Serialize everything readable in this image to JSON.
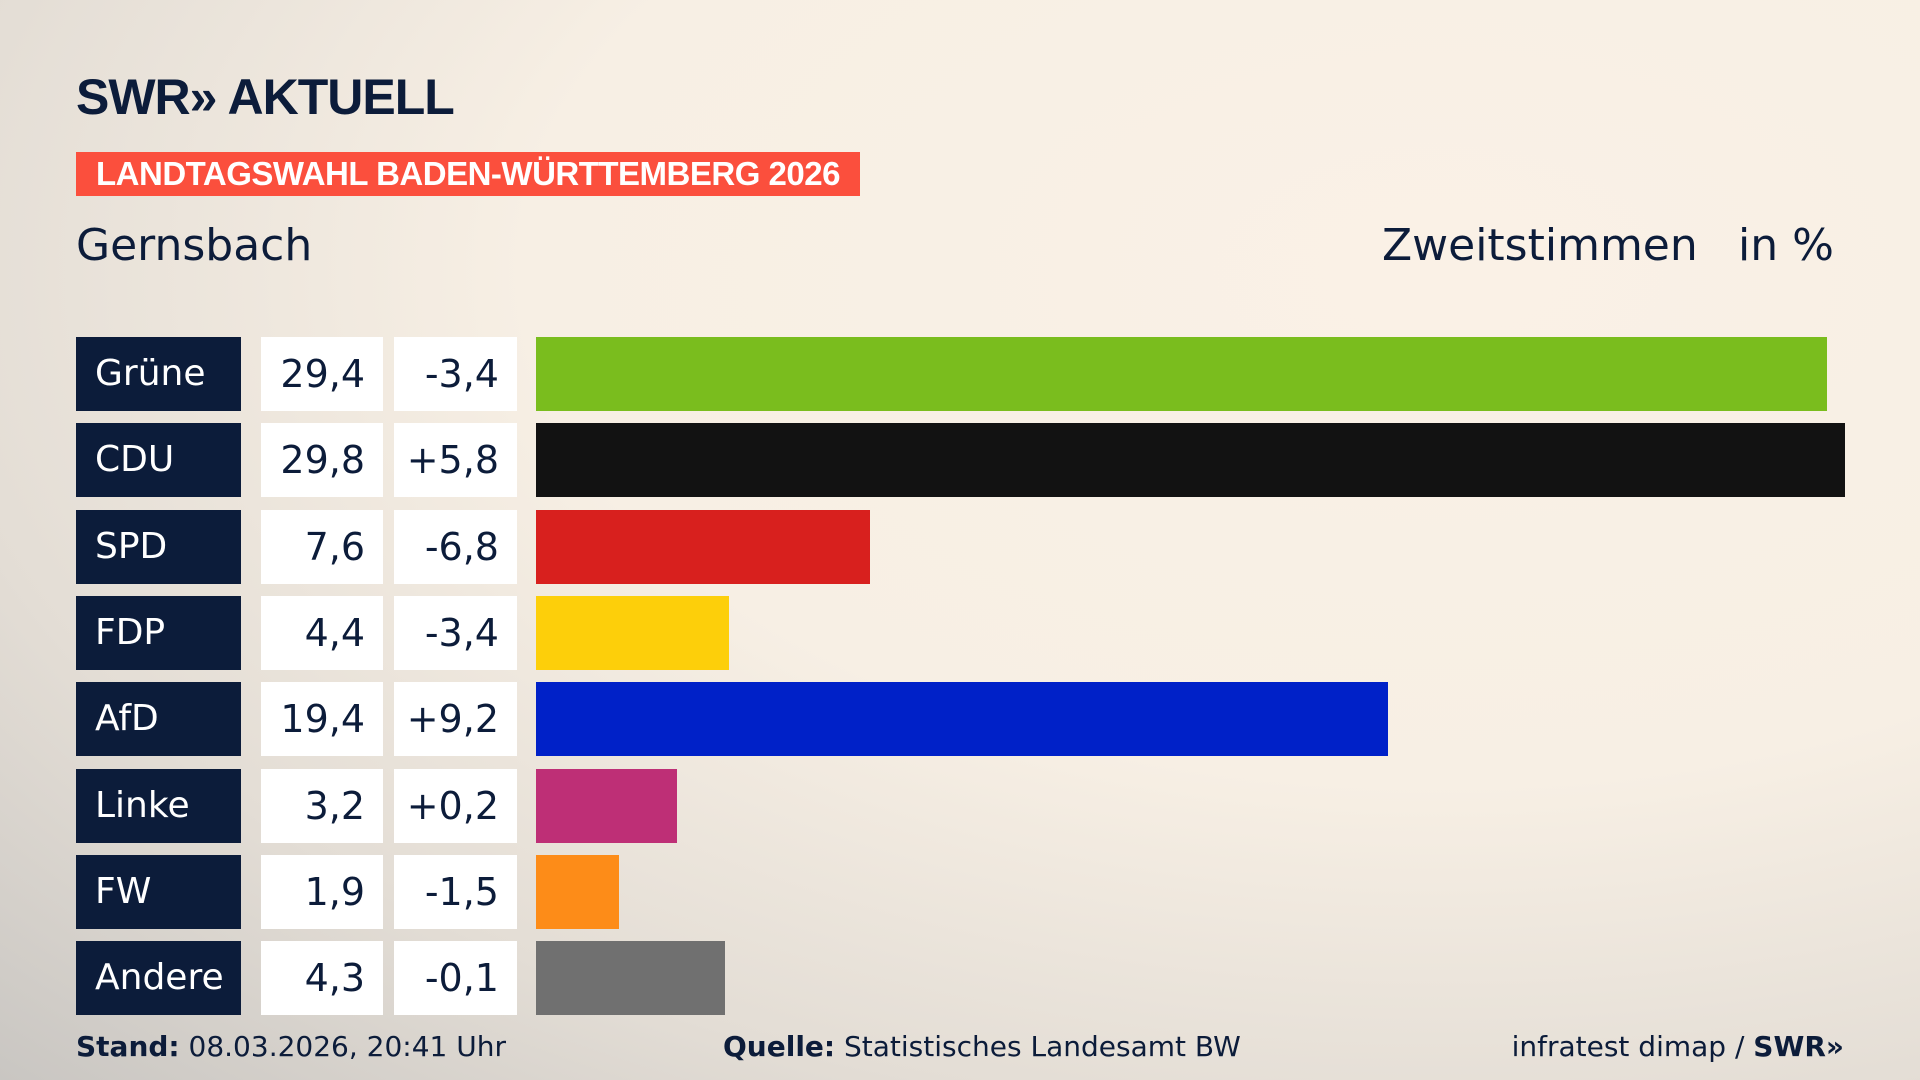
{
  "header": {
    "logo": "SWR» AKTUELL",
    "banner": "LANDTAGSWAHL BADEN-WÜRTTEMBERG 2026",
    "place": "Gernsbach",
    "measure": "Zweitstimmen",
    "unit": "in %"
  },
  "chart_data": {
    "type": "bar",
    "orientation": "horizontal",
    "xlim": [
      0,
      29.8
    ],
    "categories": [
      "Grüne",
      "CDU",
      "SPD",
      "FDP",
      "AfD",
      "Linke",
      "FW",
      "Andere"
    ],
    "values": [
      29.4,
      29.8,
      7.6,
      4.4,
      19.4,
      3.2,
      1.9,
      4.3
    ],
    "value_labels": [
      "29,4",
      "29,8",
      "7,6",
      "4,4",
      "19,4",
      "3,2",
      "1,9",
      "4,3"
    ],
    "diff_labels": [
      "-3,4",
      "+5,8",
      "-6,8",
      "-3,4",
      "+9,2",
      "+0,2",
      "-1,5",
      "-0,1"
    ],
    "colors": [
      "#7abd1e",
      "#121212",
      "#d8201e",
      "#fdcf0a",
      "#0021c8",
      "#be2f76",
      "#fd8c18",
      "#707070"
    ]
  },
  "footer": {
    "stand_label": "Stand:",
    "stand": "08.03.2026, 20:41 Uhr",
    "source_label": "Quelle:",
    "source": "Statistisches Landesamt BW",
    "credit": "infratest dimap / ",
    "credit_logo": "SWR»"
  }
}
